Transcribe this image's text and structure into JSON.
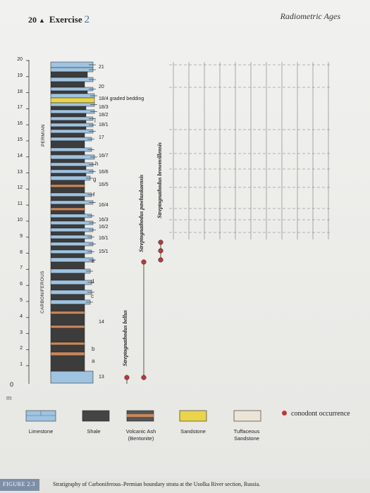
{
  "header": {
    "page_number": "20",
    "exercise_label": "Exercise",
    "exercise_number": "2",
    "right_title": "Radiometric Ages"
  },
  "scale": {
    "ticks": [
      "20",
      "19",
      "18",
      "17",
      "16",
      "15",
      "14",
      "13",
      "12",
      "11",
      "10",
      "9",
      "8",
      "7",
      "6",
      "5",
      "4",
      "3",
      "2",
      "1"
    ],
    "zero": "0",
    "unit": "m"
  },
  "systems": {
    "upper": "PERMIAN",
    "lower": "CARBONIFEROUS"
  },
  "samples": [
    "21",
    "20",
    "18/4 graded bedding",
    "18/3",
    "18/2",
    "18/1",
    "17",
    "16/7",
    "16/6",
    "16/5",
    "16/4",
    "16/3",
    "16/2",
    "16/1",
    "15/1",
    "14",
    "13"
  ],
  "horizon_letters": [
    "i",
    "h",
    "g",
    "f",
    "e",
    "d",
    "c",
    "b",
    "a"
  ],
  "taxa": [
    "Streptognathodus bellus",
    "Streptognathodus pawhuskaensis",
    "Streptognathodus brownvillensis"
  ],
  "legend": {
    "limestone": "Limestone",
    "shale": "Shale",
    "volcanic_ash": "Volcanic Ash (Bentonite)",
    "sandstone": "Sandstone",
    "tuffaceous": "Tuffaceous Sandstone",
    "conodont": "conodont occurrence"
  },
  "colors": {
    "limestone": "#9fc3e0",
    "shale": "#333333",
    "ash_band": "#c9875a",
    "sandstone": "#e9d44c",
    "tuff": "#ece4d4",
    "conodont": "#b83a3a"
  },
  "figure": {
    "tag": "FIGURE 2.3",
    "caption": "Stratigraphy of Carboniferous–Permian boundary strata at the Usolka River section, Russia."
  }
}
